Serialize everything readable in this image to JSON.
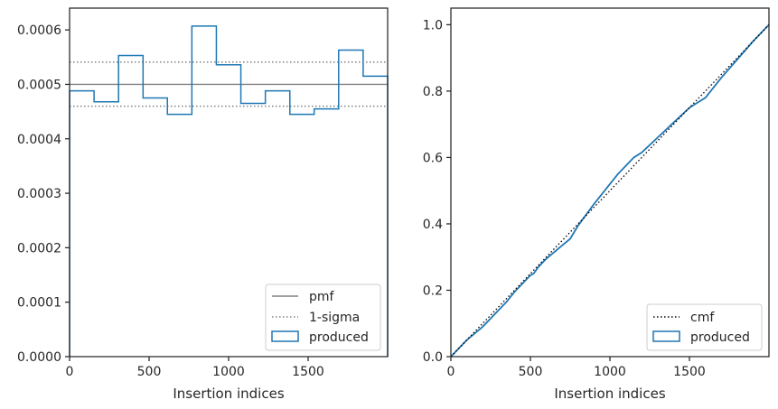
{
  "chart_data": [
    {
      "type": "histogram",
      "xlabel": "Insertion indices",
      "ylabel": "",
      "xlim": [
        0,
        2000
      ],
      "ylim": [
        0,
        0.00064
      ],
      "xticks": [
        0,
        500,
        1000,
        1500
      ],
      "xtick_labels": [
        "0",
        "500",
        "1000",
        "1500"
      ],
      "yticks": [
        0,
        0.0001,
        0.0002,
        0.0003,
        0.0004,
        0.0005,
        0.0006
      ],
      "ytick_labels": [
        "0.0000",
        "0.0001",
        "0.0002",
        "0.0003",
        "0.0004",
        "0.0005",
        "0.0006"
      ],
      "bin_edges": [
        0,
        154,
        308,
        462,
        615,
        769,
        923,
        1077,
        1231,
        1385,
        1538,
        1692,
        1846,
        2000
      ],
      "produced": [
        0.000488,
        0.000468,
        0.000553,
        0.000475,
        0.000445,
        0.000607,
        0.000536,
        0.000465,
        0.000488,
        0.000445,
        0.000455,
        0.000563,
        0.000515
      ],
      "pmf": 0.0005,
      "sigma_band": [
        0.00046,
        0.000541
      ],
      "legend": [
        "pmf",
        "1-sigma",
        "produced"
      ],
      "legend_position": "lower-right",
      "colors": {
        "produced": "#1f77b4",
        "pmf": "#808080",
        "sigma": "#808080"
      }
    },
    {
      "type": "line",
      "xlabel": "Insertion indices",
      "ylabel": "",
      "xlim": [
        0,
        2000
      ],
      "ylim": [
        0,
        1.05
      ],
      "xticks": [
        0,
        500,
        1000,
        1500
      ],
      "xtick_labels": [
        "0",
        "500",
        "1000",
        "1500"
      ],
      "yticks": [
        0,
        0.2,
        0.4,
        0.6,
        0.8,
        1.0
      ],
      "ytick_labels": [
        "0.0",
        "0.2",
        "0.4",
        "0.6",
        "0.8",
        "1.0"
      ],
      "cmf": {
        "x": [
          0,
          2000
        ],
        "y": [
          0,
          1.0
        ]
      },
      "produced": {
        "x": [
          0,
          100,
          200,
          300,
          350,
          400,
          500,
          520,
          550,
          600,
          700,
          750,
          800,
          900,
          1000,
          1050,
          1100,
          1150,
          1200,
          1300,
          1400,
          1500,
          1550,
          1600,
          1700,
          1800,
          1900,
          2000
        ],
        "y": [
          0,
          0.05,
          0.09,
          0.14,
          0.165,
          0.195,
          0.245,
          0.25,
          0.27,
          0.295,
          0.335,
          0.355,
          0.395,
          0.46,
          0.52,
          0.55,
          0.575,
          0.6,
          0.615,
          0.66,
          0.705,
          0.75,
          0.765,
          0.78,
          0.84,
          0.895,
          0.95,
          1.0
        ]
      },
      "legend": [
        "cmf",
        "produced"
      ],
      "legend_position": "lower-right",
      "colors": {
        "produced": "#1f77b4",
        "cmf": "#000000"
      }
    }
  ]
}
